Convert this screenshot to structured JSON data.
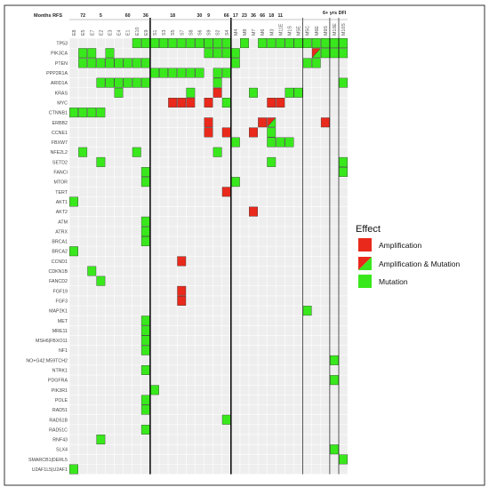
{
  "chart_data": {
    "type": "heatmap",
    "title": "",
    "header_label": "Months RFS",
    "dfi_label": "6+ yrs DFI",
    "samples": [
      "E8",
      "E5",
      "E7",
      "E2",
      "E3",
      "E4",
      "E1",
      "E10",
      "E9",
      "S1",
      "S3",
      "S5",
      "S7",
      "S8",
      "S6",
      "S9",
      "S2",
      "S4",
      "M4",
      "M8",
      "M7",
      "M6",
      "M3",
      "M11E",
      "M1S",
      "M5E",
      "M5C",
      "M6E",
      "M9S",
      "M10E",
      "M10S"
    ],
    "months_rfs": [
      {
        "label": "72",
        "col": 1
      },
      {
        "label": "5",
        "col": 3
      },
      {
        "label": "60",
        "col": 6
      },
      {
        "label": "36",
        "col": 8
      },
      {
        "label": "18",
        "col": 11
      },
      {
        "label": "30",
        "col": 14
      },
      {
        "label": "9",
        "col": 15
      },
      {
        "label": "66",
        "col": 17
      },
      {
        "label": "17",
        "col": 18
      },
      {
        "label": "23",
        "col": 19
      },
      {
        "label": "36",
        "col": 20
      },
      {
        "label": "66",
        "col": 21
      },
      {
        "label": "18",
        "col": 22
      },
      {
        "label": "11",
        "col": 23
      }
    ],
    "genes": [
      "TP53",
      "PIK3CA",
      "PTEN",
      "PPP2R1A",
      "ARID1A",
      "KRAS",
      "MYC",
      "CTNNB1",
      "ERBB2",
      "CCNE1",
      "FBXW7",
      "NFE2L2",
      "SETD2",
      "FANCI",
      "MTOR",
      "TERT",
      "AKT1",
      "AKT2",
      "ATM",
      "ATRX",
      "BRCA1",
      "BRCA2",
      "CCND1",
      "CDKN1B",
      "FANCD2",
      "FGF19",
      "FGF3",
      "MAP2K1",
      "MET",
      "MRE11",
      "MSH6|FBXO11",
      "NF1",
      "NO+G42:M59TCH2",
      "NTRK1",
      "PDGFRA",
      "PIK3R1",
      "POLE",
      "RAD51",
      "RAD51B",
      "RAD51C",
      "RNF43",
      "SLX4",
      "SMARCB1|DERL5",
      "U2AF1L5|U2AF1"
    ],
    "effects": [
      "Amplification",
      "Amplification & Mutation",
      "Mutation"
    ],
    "colors": {
      "Amplification": "#e8291c",
      "Mutation": "#39e81c",
      "empty": "#eeeeee"
    },
    "cells": [
      {
        "gene": "TP53",
        "sample": "E10",
        "effect": "Mutation"
      },
      {
        "gene": "TP53",
        "sample": "E9",
        "effect": "Mutation"
      },
      {
        "gene": "TP53",
        "sample": "S1",
        "effect": "Mutation"
      },
      {
        "gene": "TP53",
        "sample": "S3",
        "effect": "Mutation"
      },
      {
        "gene": "TP53",
        "sample": "S5",
        "effect": "Mutation"
      },
      {
        "gene": "TP53",
        "sample": "S7",
        "effect": "Mutation"
      },
      {
        "gene": "TP53",
        "sample": "S8",
        "effect": "Mutation"
      },
      {
        "gene": "TP53",
        "sample": "S6",
        "effect": "Mutation"
      },
      {
        "gene": "TP53",
        "sample": "S9",
        "effect": "Mutation"
      },
      {
        "gene": "TP53",
        "sample": "S2",
        "effect": "Mutation"
      },
      {
        "gene": "TP53",
        "sample": "S4",
        "effect": "Mutation"
      },
      {
        "gene": "TP53",
        "sample": "M8",
        "effect": "Mutation"
      },
      {
        "gene": "TP53",
        "sample": "M6",
        "effect": "Mutation"
      },
      {
        "gene": "TP53",
        "sample": "M3",
        "effect": "Mutation"
      },
      {
        "gene": "TP53",
        "sample": "M11E",
        "effect": "Mutation"
      },
      {
        "gene": "TP53",
        "sample": "M1S",
        "effect": "Mutation"
      },
      {
        "gene": "TP53",
        "sample": "M5E",
        "effect": "Mutation"
      },
      {
        "gene": "TP53",
        "sample": "M5C",
        "effect": "Mutation"
      },
      {
        "gene": "TP53",
        "sample": "M6E",
        "effect": "Mutation"
      },
      {
        "gene": "TP53",
        "sample": "M9S",
        "effect": "Mutation"
      },
      {
        "gene": "TP53",
        "sample": "M10E",
        "effect": "Mutation"
      },
      {
        "gene": "TP53",
        "sample": "M10S",
        "effect": "Mutation"
      },
      {
        "gene": "PIK3CA",
        "sample": "E5",
        "effect": "Mutation"
      },
      {
        "gene": "PIK3CA",
        "sample": "E7",
        "effect": "Mutation"
      },
      {
        "gene": "PIK3CA",
        "sample": "E3",
        "effect": "Mutation"
      },
      {
        "gene": "PIK3CA",
        "sample": "S9",
        "effect": "Mutation"
      },
      {
        "gene": "PIK3CA",
        "sample": "S2",
        "effect": "Mutation"
      },
      {
        "gene": "PIK3CA",
        "sample": "S4",
        "effect": "Mutation"
      },
      {
        "gene": "PIK3CA",
        "sample": "M4",
        "effect": "Mutation"
      },
      {
        "gene": "PIK3CA",
        "sample": "M6E",
        "effect": "Amplification & Mutation"
      },
      {
        "gene": "PIK3CA",
        "sample": "M9S",
        "effect": "Mutation"
      },
      {
        "gene": "PIK3CA",
        "sample": "M10E",
        "effect": "Mutation"
      },
      {
        "gene": "PIK3CA",
        "sample": "M10S",
        "effect": "Mutation"
      },
      {
        "gene": "PTEN",
        "sample": "E5",
        "effect": "Mutation"
      },
      {
        "gene": "PTEN",
        "sample": "E7",
        "effect": "Mutation"
      },
      {
        "gene": "PTEN",
        "sample": "E2",
        "effect": "Mutation"
      },
      {
        "gene": "PTEN",
        "sample": "E3",
        "effect": "Mutation"
      },
      {
        "gene": "PTEN",
        "sample": "E4",
        "effect": "Mutation"
      },
      {
        "gene": "PTEN",
        "sample": "E1",
        "effect": "Mutation"
      },
      {
        "gene": "PTEN",
        "sample": "E10",
        "effect": "Mutation"
      },
      {
        "gene": "PTEN",
        "sample": "E9",
        "effect": "Mutation"
      },
      {
        "gene": "PTEN",
        "sample": "M4",
        "effect": "Mutation"
      },
      {
        "gene": "PTEN",
        "sample": "M5C",
        "effect": "Mutation"
      },
      {
        "gene": "PTEN",
        "sample": "M6E",
        "effect": "Mutation"
      },
      {
        "gene": "PPP2R1A",
        "sample": "S1",
        "effect": "Mutation"
      },
      {
        "gene": "PPP2R1A",
        "sample": "S3",
        "effect": "Mutation"
      },
      {
        "gene": "PPP2R1A",
        "sample": "S5",
        "effect": "Mutation"
      },
      {
        "gene": "PPP2R1A",
        "sample": "S7",
        "effect": "Mutation"
      },
      {
        "gene": "PPP2R1A",
        "sample": "S8",
        "effect": "Mutation"
      },
      {
        "gene": "PPP2R1A",
        "sample": "S6",
        "effect": "Mutation"
      },
      {
        "gene": "PPP2R1A",
        "sample": "S2",
        "effect": "Mutation"
      },
      {
        "gene": "PPP2R1A",
        "sample": "S4",
        "effect": "Mutation"
      },
      {
        "gene": "ARID1A",
        "sample": "E2",
        "effect": "Mutation"
      },
      {
        "gene": "ARID1A",
        "sample": "E3",
        "effect": "Mutation"
      },
      {
        "gene": "ARID1A",
        "sample": "E4",
        "effect": "Mutation"
      },
      {
        "gene": "ARID1A",
        "sample": "E1",
        "effect": "Mutation"
      },
      {
        "gene": "ARID1A",
        "sample": "E10",
        "effect": "Mutation"
      },
      {
        "gene": "ARID1A",
        "sample": "E9",
        "effect": "Mutation"
      },
      {
        "gene": "ARID1A",
        "sample": "S2",
        "effect": "Mutation"
      },
      {
        "gene": "ARID1A",
        "sample": "M10S",
        "effect": "Mutation"
      },
      {
        "gene": "KRAS",
        "sample": "E4",
        "effect": "Mutation"
      },
      {
        "gene": "KRAS",
        "sample": "S8",
        "effect": "Mutation"
      },
      {
        "gene": "KRAS",
        "sample": "S2",
        "effect": "Amplification"
      },
      {
        "gene": "KRAS",
        "sample": "M7",
        "effect": "Mutation"
      },
      {
        "gene": "KRAS",
        "sample": "M1S",
        "effect": "Mutation"
      },
      {
        "gene": "KRAS",
        "sample": "M5E",
        "effect": "Mutation"
      },
      {
        "gene": "MYC",
        "sample": "S5",
        "effect": "Amplification"
      },
      {
        "gene": "MYC",
        "sample": "S7",
        "effect": "Amplification"
      },
      {
        "gene": "MYC",
        "sample": "S8",
        "effect": "Amplification"
      },
      {
        "gene": "MYC",
        "sample": "S9",
        "effect": "Amplification"
      },
      {
        "gene": "MYC",
        "sample": "S4",
        "effect": "Mutation"
      },
      {
        "gene": "MYC",
        "sample": "M3",
        "effect": "Amplification"
      },
      {
        "gene": "MYC",
        "sample": "M11E",
        "effect": "Amplification"
      },
      {
        "gene": "CTNNB1",
        "sample": "E8",
        "effect": "Mutation"
      },
      {
        "gene": "CTNNB1",
        "sample": "E5",
        "effect": "Mutation"
      },
      {
        "gene": "CTNNB1",
        "sample": "E7",
        "effect": "Mutation"
      },
      {
        "gene": "CTNNB1",
        "sample": "E2",
        "effect": "Mutation"
      },
      {
        "gene": "ERBB2",
        "sample": "S9",
        "effect": "Amplification"
      },
      {
        "gene": "ERBB2",
        "sample": "M6",
        "effect": "Amplification"
      },
      {
        "gene": "ERBB2",
        "sample": "M3",
        "effect": "Amplification & Mutation"
      },
      {
        "gene": "ERBB2",
        "sample": "M9S",
        "effect": "Amplification"
      },
      {
        "gene": "CCNE1",
        "sample": "S9",
        "effect": "Amplification"
      },
      {
        "gene": "CCNE1",
        "sample": "S4",
        "effect": "Amplification"
      },
      {
        "gene": "CCNE1",
        "sample": "M7",
        "effect": "Amplification"
      },
      {
        "gene": "CCNE1",
        "sample": "M3",
        "effect": "Mutation"
      },
      {
        "gene": "FBXW7",
        "sample": "M4",
        "effect": "Mutation"
      },
      {
        "gene": "FBXW7",
        "sample": "M3",
        "effect": "Mutation"
      },
      {
        "gene": "FBXW7",
        "sample": "M11E",
        "effect": "Mutation"
      },
      {
        "gene": "FBXW7",
        "sample": "M1S",
        "effect": "Mutation"
      },
      {
        "gene": "NFE2L2",
        "sample": "E5",
        "effect": "Mutation"
      },
      {
        "gene": "NFE2L2",
        "sample": "E10",
        "effect": "Mutation"
      },
      {
        "gene": "NFE2L2",
        "sample": "S2",
        "effect": "Mutation"
      },
      {
        "gene": "SETD2",
        "sample": "E2",
        "effect": "Mutation"
      },
      {
        "gene": "SETD2",
        "sample": "M3",
        "effect": "Mutation"
      },
      {
        "gene": "SETD2",
        "sample": "M10S",
        "effect": "Mutation"
      },
      {
        "gene": "FANCI",
        "sample": "E9",
        "effect": "Mutation"
      },
      {
        "gene": "FANCI",
        "sample": "M10S",
        "effect": "Mutation"
      },
      {
        "gene": "MTOR",
        "sample": "E9",
        "effect": "Mutation"
      },
      {
        "gene": "MTOR",
        "sample": "M4",
        "effect": "Mutation"
      },
      {
        "gene": "TERT",
        "sample": "S4",
        "effect": "Amplification"
      },
      {
        "gene": "AKT1",
        "sample": "E8",
        "effect": "Mutation"
      },
      {
        "gene": "AKT2",
        "sample": "M7",
        "effect": "Amplification"
      },
      {
        "gene": "ATM",
        "sample": "E9",
        "effect": "Mutation"
      },
      {
        "gene": "ATRX",
        "sample": "E9",
        "effect": "Mutation"
      },
      {
        "gene": "BRCA1",
        "sample": "E9",
        "effect": "Mutation"
      },
      {
        "gene": "BRCA2",
        "sample": "E8",
        "effect": "Mutation"
      },
      {
        "gene": "CCND1",
        "sample": "S7",
        "effect": "Amplification"
      },
      {
        "gene": "CDKN1B",
        "sample": "E7",
        "effect": "Mutation"
      },
      {
        "gene": "FANCD2",
        "sample": "E2",
        "effect": "Mutation"
      },
      {
        "gene": "FGF19",
        "sample": "S7",
        "effect": "Amplification"
      },
      {
        "gene": "FGF3",
        "sample": "S7",
        "effect": "Amplification"
      },
      {
        "gene": "MAP2K1",
        "sample": "M5C",
        "effect": "Mutation"
      },
      {
        "gene": "MET",
        "sample": "E9",
        "effect": "Mutation"
      },
      {
        "gene": "MRE11",
        "sample": "E9",
        "effect": "Mutation"
      },
      {
        "gene": "MSH6|FBXO11",
        "sample": "E9",
        "effect": "Mutation"
      },
      {
        "gene": "NF1",
        "sample": "E9",
        "effect": "Mutation"
      },
      {
        "gene": "NO+G42:M59TCH2",
        "sample": "M10E",
        "effect": "Mutation"
      },
      {
        "gene": "NTRK1",
        "sample": "E9",
        "effect": "Mutation"
      },
      {
        "gene": "PDGFRA",
        "sample": "M10E",
        "effect": "Mutation"
      },
      {
        "gene": "PIK3R1",
        "sample": "S1",
        "effect": "Mutation"
      },
      {
        "gene": "POLE",
        "sample": "E9",
        "effect": "Mutation"
      },
      {
        "gene": "RAD51",
        "sample": "E9",
        "effect": "Mutation"
      },
      {
        "gene": "RAD51B",
        "sample": "S4",
        "effect": "Mutation"
      },
      {
        "gene": "RAD51C",
        "sample": "E9",
        "effect": "Mutation"
      },
      {
        "gene": "RNF43",
        "sample": "E2",
        "effect": "Mutation"
      },
      {
        "gene": "SLX4",
        "sample": "M10E",
        "effect": "Mutation"
      },
      {
        "gene": "SMARCB1|DERL5",
        "sample": "M10S",
        "effect": "Mutation"
      },
      {
        "gene": "U2AF1L5|U2AF1",
        "sample": "E8",
        "effect": "Mutation"
      }
    ],
    "legend": {
      "title": "Effect",
      "position": "right"
    }
  }
}
